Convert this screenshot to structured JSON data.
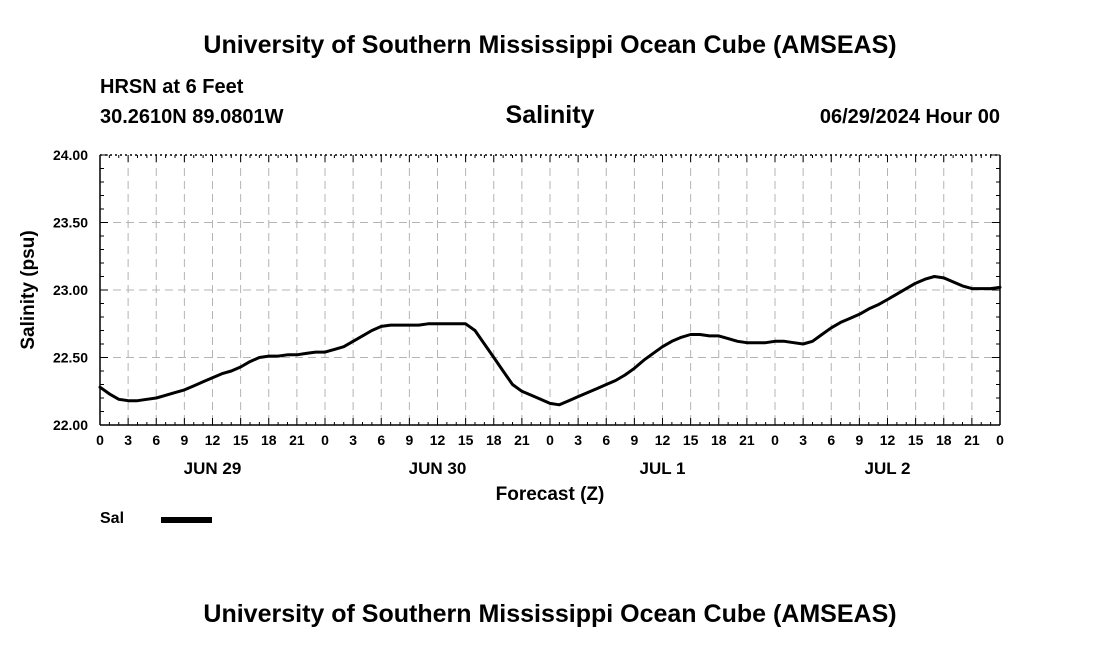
{
  "header": {
    "title": "University of Southern Mississippi Ocean Cube (AMSEAS)",
    "station": "HRSN at 6 Feet",
    "coords": "30.2610N  89.0801W",
    "chart_title": "Salinity",
    "run_time": "06/29/2024 Hour 00"
  },
  "footer": {
    "title": "University of Southern Mississippi Ocean Cube (AMSEAS)"
  },
  "legend": {
    "label": "Sal",
    "color": "#000000"
  },
  "chart_data": {
    "type": "line",
    "title": "Salinity",
    "xlabel": "Forecast (Z)",
    "ylabel": "Salinity (psu)",
    "ylim": [
      22.0,
      24.0
    ],
    "xlim": [
      0,
      96
    ],
    "grid": true,
    "yticks": [
      "22.00",
      "22.50",
      "23.00",
      "23.50",
      "24.00"
    ],
    "ytick_values": [
      22.0,
      22.5,
      23.0,
      23.5,
      24.0
    ],
    "xtick_labels": [
      "0",
      "3",
      "6",
      "9",
      "12",
      "15",
      "18",
      "21",
      "0",
      "3",
      "6",
      "9",
      "12",
      "15",
      "18",
      "21",
      "0",
      "3",
      "6",
      "9",
      "12",
      "15",
      "18",
      "21",
      "0",
      "3",
      "6",
      "9",
      "12",
      "15",
      "18",
      "21",
      "0"
    ],
    "day_labels": [
      {
        "label": "JUN 29",
        "hour": 12
      },
      {
        "label": "JUN 30",
        "hour": 36
      },
      {
        "label": "JUL 1",
        "hour": 60
      },
      {
        "label": "JUL 2",
        "hour": 84
      }
    ],
    "series": [
      {
        "name": "Sal",
        "color": "#000000",
        "x": [
          0,
          1,
          2,
          3,
          4,
          5,
          6,
          7,
          8,
          9,
          10,
          11,
          12,
          13,
          14,
          15,
          16,
          17,
          18,
          19,
          20,
          21,
          22,
          23,
          24,
          25,
          26,
          27,
          28,
          29,
          30,
          31,
          32,
          33,
          34,
          35,
          36,
          37,
          38,
          39,
          40,
          41,
          42,
          43,
          44,
          45,
          46,
          47,
          48,
          49,
          50,
          51,
          52,
          53,
          54,
          55,
          56,
          57,
          58,
          59,
          60,
          61,
          62,
          63,
          64,
          65,
          66,
          67,
          68,
          69,
          70,
          71,
          72,
          73,
          74,
          75,
          76,
          77,
          78,
          79,
          80,
          81,
          82,
          83,
          84,
          85,
          86,
          87,
          88,
          89,
          90,
          91,
          92,
          93,
          94,
          95,
          96
        ],
        "values": [
          22.28,
          22.23,
          22.19,
          22.18,
          22.18,
          22.19,
          22.2,
          22.22,
          22.24,
          22.26,
          22.29,
          22.32,
          22.35,
          22.38,
          22.4,
          22.43,
          22.47,
          22.5,
          22.51,
          22.51,
          22.52,
          22.52,
          22.53,
          22.54,
          22.54,
          22.56,
          22.58,
          22.62,
          22.66,
          22.7,
          22.73,
          22.74,
          22.74,
          22.74,
          22.74,
          22.75,
          22.75,
          22.75,
          22.75,
          22.75,
          22.7,
          22.6,
          22.5,
          22.4,
          22.3,
          22.25,
          22.22,
          22.19,
          22.16,
          22.15,
          22.18,
          22.21,
          22.24,
          22.27,
          22.3,
          22.33,
          22.37,
          22.42,
          22.48,
          22.53,
          22.58,
          22.62,
          22.65,
          22.67,
          22.67,
          22.66,
          22.66,
          22.64,
          22.62,
          22.61,
          22.61,
          22.61,
          22.62,
          22.62,
          22.61,
          22.6,
          22.62,
          22.67,
          22.72,
          22.76,
          22.79,
          22.82,
          22.86,
          22.89,
          22.93,
          22.97,
          23.01,
          23.05,
          23.08,
          23.1,
          23.09,
          23.06,
          23.03,
          23.01,
          23.01,
          23.01,
          23.02
        ]
      }
    ]
  }
}
